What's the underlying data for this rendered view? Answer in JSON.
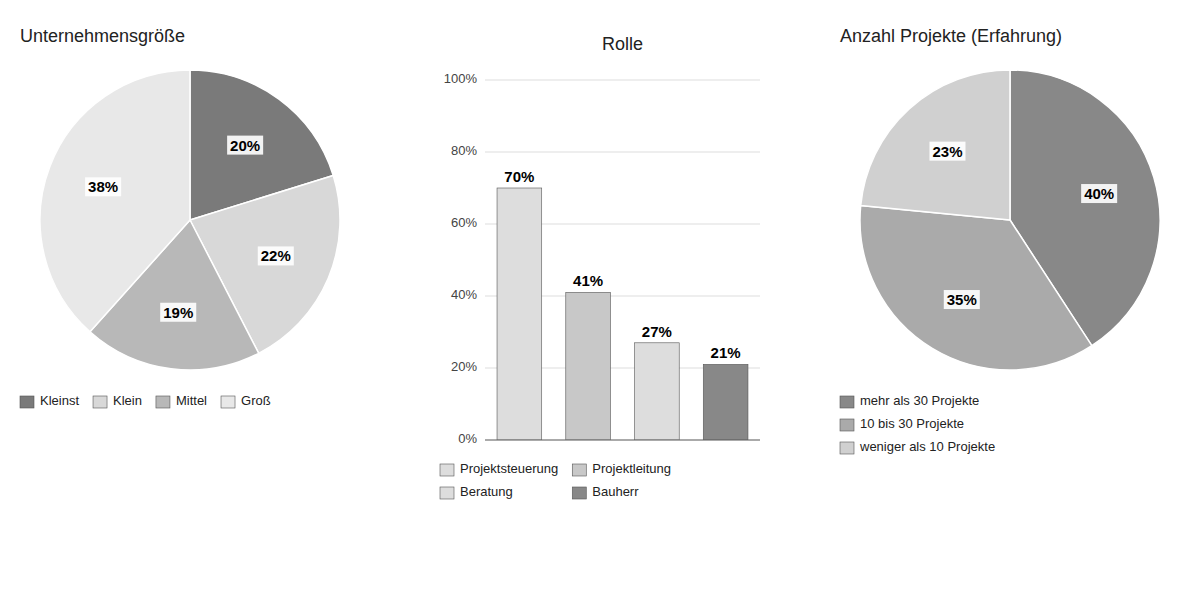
{
  "chart_data": [
    {
      "type": "pie",
      "title": "Unternehmensgröße",
      "categories": [
        "Kleinst",
        "Klein",
        "Mittel",
        "Groß"
      ],
      "values": [
        20,
        22,
        19,
        38
      ],
      "value_labels": [
        "20%",
        "22%",
        "19%",
        "38%"
      ],
      "colors": [
        "#7a7a7a",
        "#d8d8d8",
        "#b8b8b8",
        "#e8e8e8"
      ],
      "data_labels": true,
      "legend": "bottom"
    },
    {
      "type": "bar",
      "title": "Rolle",
      "categories": [
        "Projektsteuerung",
        "Projektleitung",
        "Beratung",
        "Bauherr"
      ],
      "values": [
        70,
        41,
        27,
        21
      ],
      "value_labels": [
        "70%",
        "41%",
        "27%",
        "21%"
      ],
      "colors": [
        "#dddddd",
        "#c8c8c8",
        "#dddddd",
        "#888888"
      ],
      "ylim": [
        0,
        100
      ],
      "yticks": [
        {
          "value": 0,
          "label": "0%"
        },
        {
          "value": 20,
          "label": "20%"
        },
        {
          "value": 40,
          "label": "40%"
        },
        {
          "value": 60,
          "label": "60%"
        },
        {
          "value": 80,
          "label": "80%"
        },
        {
          "value": 100,
          "label": "100%"
        }
      ],
      "grid": true,
      "data_labels": true,
      "tick_labels": "y",
      "legend": "bottom"
    },
    {
      "type": "pie",
      "title": "Anzahl Projekte (Erfahrung)",
      "categories": [
        "mehr als 30 Projekte",
        "10 bis 30 Projekte",
        "weniger als 10 Projekte"
      ],
      "values": [
        40,
        35,
        23
      ],
      "value_labels": [
        "40%",
        "35%",
        "23%"
      ],
      "colors": [
        "#888888",
        "#aaaaaa",
        "#d0d0d0"
      ],
      "data_labels": true,
      "legend": "bottom"
    }
  ]
}
